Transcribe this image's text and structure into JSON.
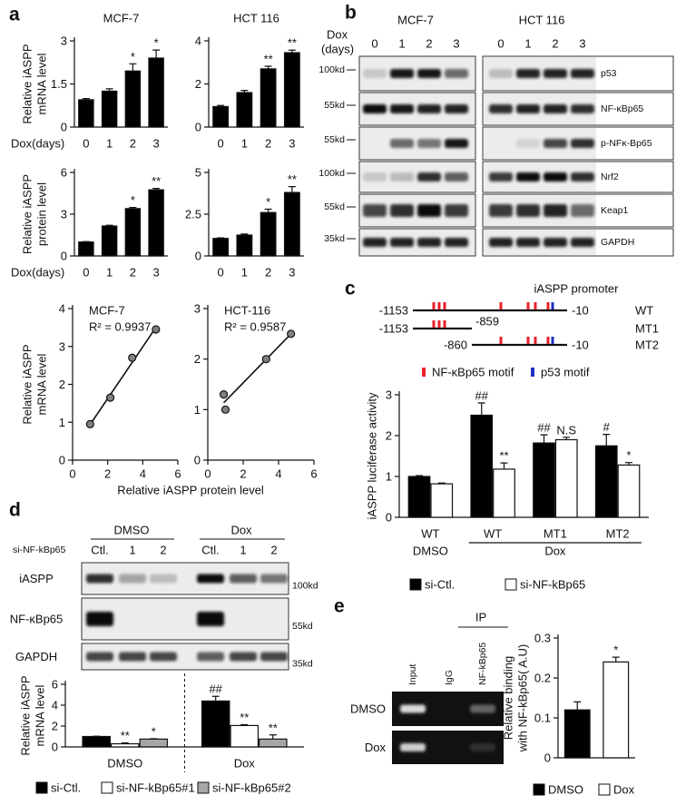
{
  "panel_labels": [
    "a",
    "b",
    "c",
    "d",
    "e"
  ],
  "chart_data": [
    {
      "type": "bar",
      "title": "MCF-7",
      "ylabel": [
        "Relative iASPP",
        "mRNA level"
      ],
      "xlabel": "Dox(days)",
      "categories": [
        "0",
        "1",
        "2",
        "3"
      ],
      "values": [
        0.95,
        1.25,
        1.95,
        2.4
      ],
      "errors": [
        0.04,
        0.08,
        0.25,
        0.28
      ],
      "color": "#000000",
      "annotations": [
        {
          "index": 2,
          "text": "*"
        },
        {
          "index": 3,
          "text": "*"
        }
      ],
      "ylim": [
        0,
        3
      ],
      "yticks": [
        0,
        1.5,
        3
      ]
    },
    {
      "type": "bar",
      "title": "HCT 116",
      "categories": [
        "0",
        "1",
        "2",
        "3"
      ],
      "values": [
        0.95,
        1.6,
        2.7,
        3.45
      ],
      "errors": [
        0.05,
        0.1,
        0.12,
        0.12
      ],
      "color": "#000000",
      "annotations": [
        {
          "index": 2,
          "text": "**"
        },
        {
          "index": 3,
          "text": "**"
        }
      ],
      "ylim": [
        0,
        4
      ],
      "yticks": [
        0,
        2,
        4
      ]
    },
    {
      "type": "bar",
      "ylabel": [
        "Relative iASPP",
        "protein level"
      ],
      "xlabel": "Dox(days)",
      "categories": [
        "0",
        "1",
        "2",
        "3"
      ],
      "values": [
        1,
        2.15,
        3.4,
        4.75
      ],
      "errors": [
        0.03,
        0.05,
        0.08,
        0.1
      ],
      "color": "#000000",
      "annotations": [
        {
          "index": 2,
          "text": "*"
        },
        {
          "index": 3,
          "text": "**"
        }
      ],
      "ylim": [
        0,
        6
      ],
      "yticks": [
        0,
        3,
        6
      ]
    },
    {
      "type": "bar",
      "categories": [
        "0",
        "1",
        "2",
        "3"
      ],
      "values": [
        1.05,
        1.25,
        2.6,
        3.8
      ],
      "errors": [
        0.03,
        0.06,
        0.2,
        0.35
      ],
      "color": "#000000",
      "annotations": [
        {
          "index": 2,
          "text": "*"
        },
        {
          "index": 3,
          "text": "**"
        }
      ],
      "ylim": [
        0,
        5
      ],
      "yticks": [
        0,
        2.5,
        5
      ]
    },
    {
      "type": "scatter",
      "annotation": "MCF-7",
      "r_squared": "R² = 0.9937",
      "ylabel": [
        "Relative iASPP",
        "mRNA level"
      ],
      "xlabel": "Relative iASPP protein level",
      "x": [
        1,
        2.15,
        3.4,
        4.75
      ],
      "values": [
        0.95,
        1.65,
        2.7,
        3.45
      ],
      "color": "#808080",
      "xlim": [
        0,
        6
      ],
      "xticks": [
        0,
        2,
        4,
        6
      ],
      "ylim": [
        0,
        4
      ],
      "yticks": [
        0,
        1,
        2,
        3,
        4
      ]
    },
    {
      "type": "scatter",
      "annotation": "HCT-116",
      "r_squared": "R² = 0.9587",
      "x": [
        0.9,
        1.0,
        3.3,
        4.7
      ],
      "values": [
        1.3,
        1.0,
        2.0,
        2.5
      ],
      "color": "#808080",
      "xlim": [
        0,
        6
      ],
      "xticks": [
        0,
        2,
        4,
        6
      ],
      "ylim": [
        0,
        3
      ],
      "yticks": [
        0,
        1,
        2,
        3
      ]
    },
    {
      "type": "bar",
      "ylabel": [
        "iASPP luciferase activity"
      ],
      "categories": [
        "WT",
        "WT",
        "MT1",
        "MT2"
      ],
      "group_labels": [
        "DMSO",
        "Dox"
      ],
      "series": [
        {
          "name": "si-Ctl.",
          "color": "#000000",
          "values": [
            1,
            2.5,
            1.82,
            1.75
          ],
          "errors": [
            0.02,
            0.3,
            0.2,
            0.28
          ],
          "annotations": [
            {
              "index": 1,
              "text": "##"
            },
            {
              "index": 2,
              "text": "##"
            },
            {
              "index": 3,
              "text": "#"
            }
          ]
        },
        {
          "name": "si-NF-kBp65",
          "color": "#ffffff",
          "values": [
            0.82,
            1.18,
            1.9,
            1.28
          ],
          "errors": [
            0.02,
            0.15,
            0.06,
            0.06
          ],
          "annotations": [
            {
              "index": 1,
              "text": "**"
            },
            {
              "index": 2,
              "text": "N.S"
            },
            {
              "index": 3,
              "text": "*"
            }
          ]
        }
      ],
      "ylim": [
        0,
        3
      ],
      "yticks": [
        0,
        1,
        2,
        3
      ]
    },
    {
      "type": "bar",
      "ylabel": [
        "Relative iASPP",
        "mRNA level"
      ],
      "categories": [
        "DMSO",
        "Dox"
      ],
      "series": [
        {
          "name": "si-Ctl.",
          "color": "#000000",
          "values": [
            1,
            4.4
          ],
          "errors": [
            0.02,
            0.45
          ],
          "annotations": [
            {
              "index": 1,
              "text": "##"
            }
          ]
        },
        {
          "name": "si-NF-kBp65#1",
          "color": "#ffffff",
          "values": [
            0.3,
            2.05
          ],
          "errors": [
            0.08,
            0.08
          ],
          "annotations": [
            {
              "index": 0,
              "text": "**"
            },
            {
              "index": 1,
              "text": "**"
            }
          ]
        },
        {
          "name": "si-NF-kBp65#2",
          "color": "#a6a6a6",
          "values": [
            0.75,
            0.75
          ],
          "errors": [
            0.03,
            0.4
          ],
          "annotations": [
            {
              "index": 0,
              "text": "*"
            },
            {
              "index": 1,
              "text": "**"
            }
          ]
        }
      ],
      "ylim": [
        0,
        6
      ],
      "yticks": [
        0,
        2,
        4,
        6
      ]
    },
    {
      "type": "bar",
      "ylabel": [
        "Relative binding",
        "with NF-kBp65( A.U)"
      ],
      "categories": [
        "DMSO",
        "Dox"
      ],
      "values": [
        0.12,
        0.24
      ],
      "errors": [
        0.02,
        0.012
      ],
      "colors": [
        "#000000",
        "#ffffff"
      ],
      "annotations": [
        {
          "index": 1,
          "text": "*"
        }
      ],
      "legend": true,
      "ylim": [
        0,
        0.3
      ],
      "yticks": [
        0,
        0.1,
        0.2,
        0.3
      ]
    }
  ],
  "blot_b": {
    "cell_lines": [
      "MCF-7",
      "HCT 116"
    ],
    "treatment_label": [
      "Dox",
      "(days)"
    ],
    "lanes": [
      [
        "0",
        "1",
        "2",
        "3"
      ],
      [
        "0",
        "1",
        "2",
        "3"
      ]
    ],
    "rows": [
      {
        "label": "p53",
        "marker": "100kd"
      },
      {
        "label": "NF-κBp65",
        "marker": "55kd"
      },
      {
        "label": "p-NFκ-Bp65",
        "marker": "55kd"
      },
      {
        "label": "Nrf2",
        "marker": "100kd"
      },
      {
        "label": "Keap1",
        "marker": "55kd"
      },
      {
        "label": "GAPDH",
        "marker": "35kd"
      }
    ]
  },
  "promoter_c": {
    "title": "iASPP promoter",
    "constructs": [
      {
        "name": "WT",
        "start": "-1153",
        "end": "-10"
      },
      {
        "name": "MT1",
        "start": "-1153",
        "end": "-859"
      },
      {
        "name": "MT2",
        "start": "-860",
        "end": "-10"
      }
    ],
    "legend": [
      "NF-κBp65 motif",
      "p53 motif"
    ]
  },
  "blot_d": {
    "groups": [
      "DMSO",
      "Dox"
    ],
    "lane_label": "si-NF-kBp65",
    "lanes": [
      "Ctl.",
      "1",
      "2",
      "Ctl.",
      "1",
      "2"
    ],
    "rows": [
      {
        "label": "iASPP",
        "marker": "100kd"
      },
      {
        "label": "NF-κBp65",
        "marker": "55kd"
      },
      {
        "label": "GAPDH",
        "marker": "35kd"
      }
    ]
  },
  "blot_e": {
    "ip_label": "IP",
    "lanes": [
      "Input",
      "IgG",
      "NF-kBp65"
    ],
    "rows": [
      "DMSO",
      "Dox"
    ]
  }
}
